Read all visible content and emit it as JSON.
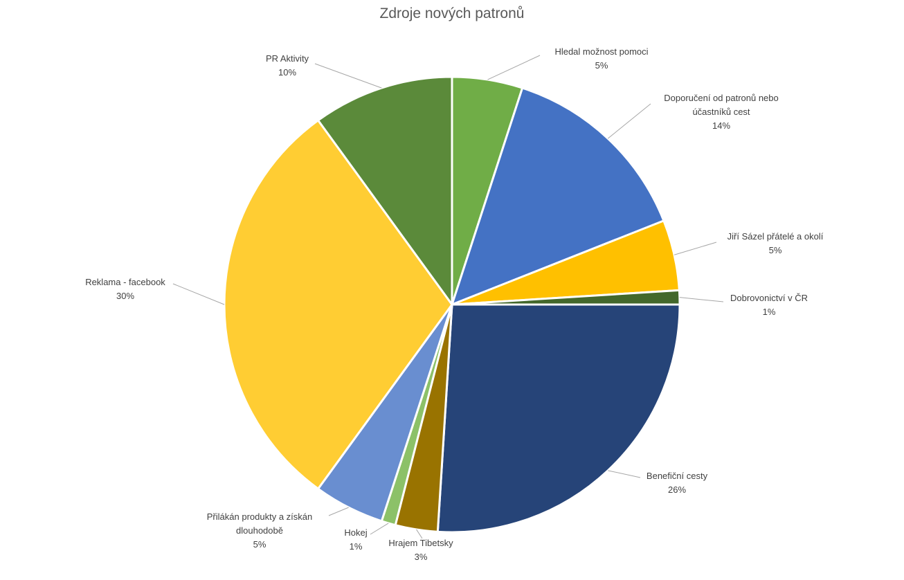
{
  "chart_data": {
    "type": "pie",
    "title": "Zdroje nových patronů",
    "categories": [
      "Hledal možnost pomoci",
      "Doporučení od patronů nebo účastníků cest",
      "Jiří Sázel přátelé a okolí",
      "Dobrovonictví v ČR",
      "Benefiční cesty",
      "Hrajem Tibetsky",
      "Hokej",
      "Přilákán produkty a získán dlouhodobě",
      "Reklama - facebook",
      "PR Aktivity"
    ],
    "values": [
      5,
      14,
      5,
      1,
      26,
      3,
      1,
      5,
      30,
      10
    ],
    "value_labels": [
      "5%",
      "14%",
      "5%",
      "1%",
      "26%",
      "3%",
      "1%",
      "5%",
      "30%",
      "10%"
    ],
    "colors": [
      "#70ad47",
      "#4472c4",
      "#ffc000",
      "#43682b",
      "#264478",
      "#997300",
      "#8cc168",
      "#698ed0",
      "#ffcd33",
      "#5b8a3a"
    ]
  }
}
